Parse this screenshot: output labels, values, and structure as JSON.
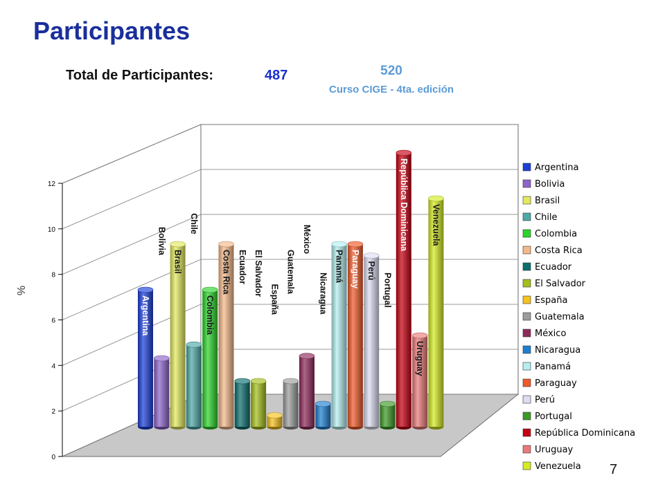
{
  "slide": {
    "title": "Participantes",
    "total_label": "Total de Participantes:",
    "total_value": "487",
    "course_count": "520",
    "course_name": "Curso CIGE - 4ta. edición",
    "page_number": "7"
  },
  "chart_data": {
    "type": "bar",
    "ylabel": "%",
    "ylim": [
      0,
      12
    ],
    "yticks": [
      0,
      2,
      4,
      6,
      8,
      10,
      12
    ],
    "grid": true,
    "legend_position": "right",
    "categories": [
      "Argentina",
      "Bolivia",
      "Brasil",
      "Chile",
      "Colombia",
      "Costa Rica",
      "Ecuador",
      "El Salvador",
      "España",
      "Guatemala",
      "México",
      "Nicaragua",
      "Panamá",
      "Paraguay",
      "Perú",
      "Portugal",
      "República Dominicana",
      "Uruguay",
      "Venezuela"
    ],
    "values": [
      6.0,
      3.0,
      8.0,
      3.6,
      6.0,
      8.0,
      2.0,
      2.0,
      0.5,
      2.0,
      3.1,
      1.0,
      8.0,
      8.0,
      7.5,
      1.0,
      12.0,
      4.0,
      10.0
    ],
    "colors": [
      "#1c3fd9",
      "#8e63c9",
      "#e3ea5e",
      "#4fa8a8",
      "#2bd42b",
      "#f4b98a",
      "#0c6e6e",
      "#a3bf1a",
      "#f6c21e",
      "#9c9c9c",
      "#8e2a5a",
      "#1e7fd0",
      "#b4eef0",
      "#ee5a2a",
      "#dcdcf2",
      "#3c9a26",
      "#c40010",
      "#ea7a7a",
      "#d6ec22"
    ]
  }
}
